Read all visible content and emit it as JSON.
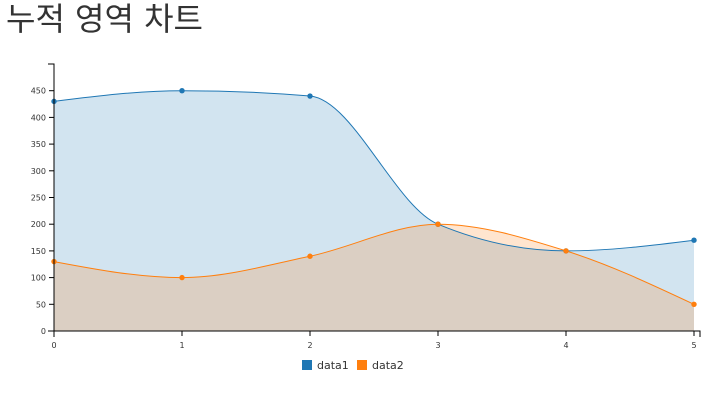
{
  "page": {
    "title": "누적 영역 차트"
  },
  "chart_data": {
    "type": "area",
    "title": "",
    "xlabel": "",
    "ylabel": "",
    "x": [
      0,
      1,
      2,
      3,
      4,
      5
    ],
    "xlim": [
      0,
      5
    ],
    "ylim": [
      0,
      500
    ],
    "yticks": [
      0,
      50,
      100,
      150,
      200,
      250,
      300,
      350,
      400,
      450
    ],
    "grid": false,
    "legend_position": "bottom",
    "series": [
      {
        "name": "data1",
        "values": [
          430,
          450,
          440,
          200,
          150,
          170
        ],
        "color": "#1f77b4"
      },
      {
        "name": "data2",
        "values": [
          130,
          100,
          140,
          200,
          150,
          50
        ],
        "color": "#ff7f0e"
      }
    ]
  }
}
